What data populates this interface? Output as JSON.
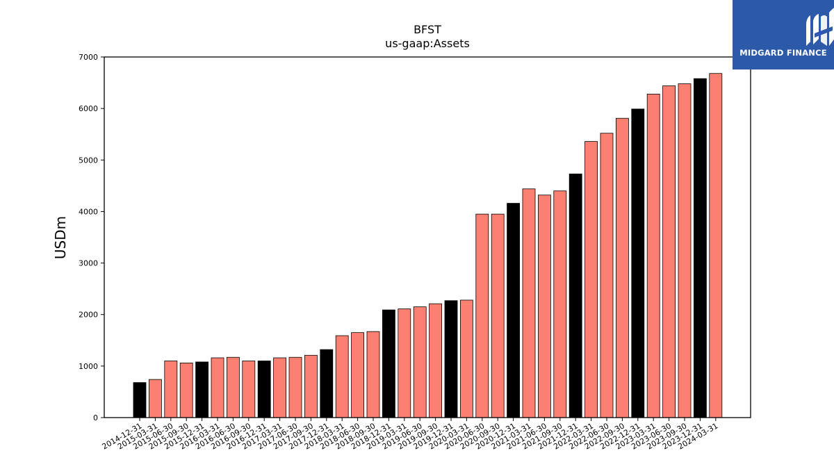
{
  "chart_data": {
    "type": "bar",
    "title": "BFST",
    "subtitle": "us-gaap:Assets",
    "ylabel": "USDm",
    "ylim": [
      0,
      7000
    ],
    "yticks": [
      0,
      1000,
      2000,
      3000,
      4000,
      5000,
      6000,
      7000
    ],
    "categories": [
      "2014-12-31",
      "2015-03-31",
      "2015-06-30",
      "2015-09-30",
      "2015-12-31",
      "2016-03-31",
      "2016-06-30",
      "2016-09-30",
      "2016-12-31",
      "2017-03-31",
      "2017-06-30",
      "2017-09-30",
      "2017-12-31",
      "2018-03-31",
      "2018-06-30",
      "2018-09-30",
      "2018-12-31",
      "2019-03-31",
      "2019-06-30",
      "2019-09-30",
      "2019-12-31",
      "2020-03-31",
      "2020-06-30",
      "2020-09-30",
      "2020-12-31",
      "2021-03-31",
      "2021-06-30",
      "2021-09-30",
      "2021-12-31",
      "2022-03-31",
      "2022-06-30",
      "2022-09-30",
      "2022-12-31",
      "2023-03-31",
      "2023-06-30",
      "2023-09-30",
      "2023-12-31",
      "2024-03-31"
    ],
    "values": [
      680,
      740,
      1100,
      1060,
      1080,
      1160,
      1170,
      1100,
      1100,
      1160,
      1170,
      1210,
      1320,
      1590,
      1650,
      1670,
      2090,
      2110,
      2150,
      2210,
      2270,
      2280,
      3950,
      3950,
      4160,
      4440,
      4320,
      4400,
      4730,
      5360,
      5520,
      5810,
      5990,
      6280,
      6440,
      6480,
      6580,
      6680
    ],
    "bar_colors": [
      "#000000",
      "#fa8072",
      "#fa8072",
      "#fa8072",
      "#000000",
      "#fa8072",
      "#fa8072",
      "#fa8072",
      "#000000",
      "#fa8072",
      "#fa8072",
      "#fa8072",
      "#000000",
      "#fa8072",
      "#fa8072",
      "#fa8072",
      "#000000",
      "#fa8072",
      "#fa8072",
      "#fa8072",
      "#000000",
      "#fa8072",
      "#fa8072",
      "#fa8072",
      "#000000",
      "#fa8072",
      "#fa8072",
      "#fa8072",
      "#000000",
      "#fa8072",
      "#fa8072",
      "#fa8072",
      "#000000",
      "#fa8072",
      "#fa8072",
      "#fa8072",
      "#000000",
      "#fa8072"
    ],
    "colors": {
      "year_end": "#000000",
      "quarter": "#fa8072",
      "edge": "#000000"
    },
    "grid": false,
    "legend": "none"
  },
  "logo": {
    "text": "MIDGARD FINANCE",
    "background": "#2d5aa8",
    "icon": "midgard-logo-icon"
  }
}
